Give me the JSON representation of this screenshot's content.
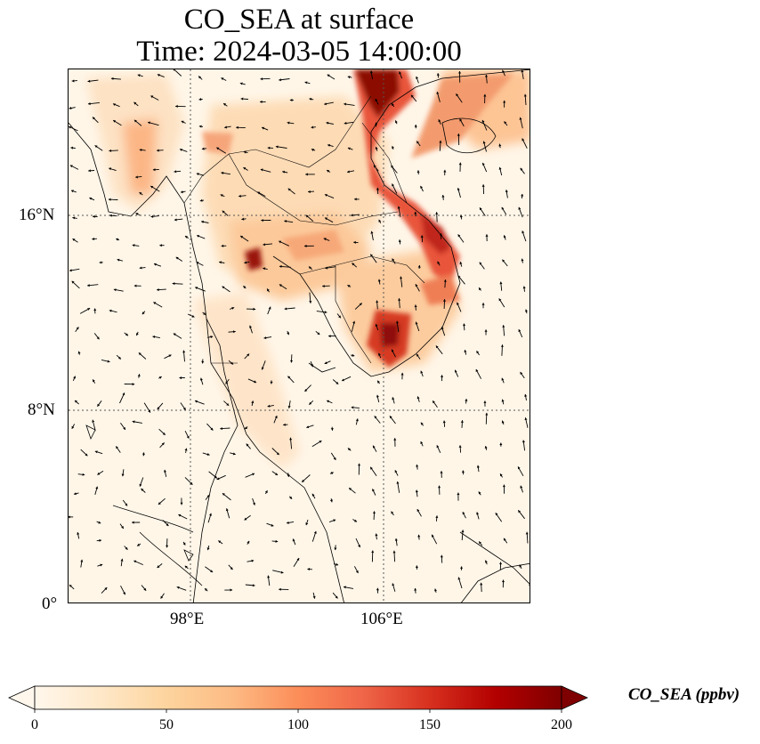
{
  "title": {
    "line1": "CO_SEA at surface",
    "line2": "Time: 2024-03-05 14:00:00"
  },
  "map": {
    "extent": {
      "lon": [
        93,
        112
      ],
      "lat": [
        0,
        22
      ]
    },
    "gridlines": {
      "lon": [
        98,
        106
      ],
      "lat": [
        0,
        8,
        16
      ],
      "style": "dotted"
    },
    "lon_labels": [
      "98°E",
      "106°E"
    ],
    "lat_labels": [
      "16°N",
      "8°N",
      "0°"
    ],
    "colormap": "OrRd",
    "wind_vectors": "black arrows"
  },
  "colorbar": {
    "label": "CO_SEA (ppbv)",
    "ticks": [
      "0",
      "50",
      "100",
      "150",
      "200"
    ],
    "range": [
      0,
      200
    ],
    "extend": "both",
    "colors": [
      "#fff7ec",
      "#fee8c8",
      "#fdd49e",
      "#fdbb84",
      "#fc8d59",
      "#ef6548",
      "#d7301f",
      "#b30000",
      "#7f0000"
    ]
  }
}
